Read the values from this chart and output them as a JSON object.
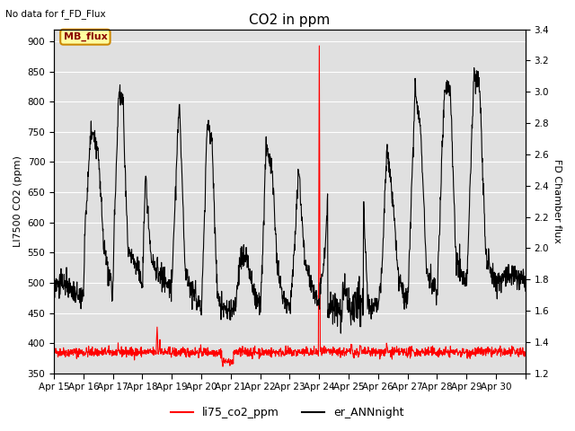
{
  "title": "CO2 in ppm",
  "ylabel_left": "LI7500 CO2 (ppm)",
  "ylabel_right": "FD Chamber flux",
  "text_no_data": "No data for f_FD_Flux",
  "mb_flux_label": "MB_flux",
  "ylim_left": [
    350,
    920
  ],
  "ylim_right": [
    1.2,
    3.4
  ],
  "yticks_left": [
    350,
    400,
    450,
    500,
    550,
    600,
    650,
    700,
    750,
    800,
    850,
    900
  ],
  "yticks_right": [
    1.2,
    1.4,
    1.6,
    1.8,
    2.0,
    2.2,
    2.4,
    2.6,
    2.8,
    3.0,
    3.2,
    3.4
  ],
  "xtick_labels": [
    "Apr 15",
    "Apr 16",
    "Apr 17",
    "Apr 18",
    "Apr 19",
    "Apr 20",
    "Apr 21",
    "Apr 22",
    "Apr 23",
    "Apr 24",
    "Apr 25",
    "Apr 26",
    "Apr 27",
    "Apr 28",
    "Apr 29",
    "Apr 30"
  ],
  "legend_labels": [
    "li75_co2_ppm",
    "er_ANNnight"
  ],
  "background_color": "#ffffff",
  "plot_bg_color": "#e0e0e0",
  "grid_color": "#ffffff",
  "title_fontsize": 11,
  "axis_label_fontsize": 8,
  "tick_fontsize": 7.5,
  "num_days": 16,
  "points_per_day": 96
}
